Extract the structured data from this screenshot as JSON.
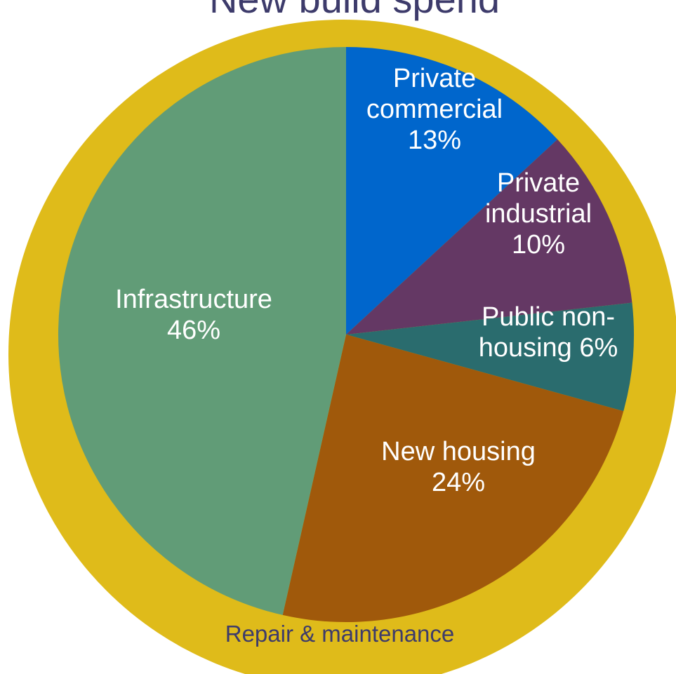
{
  "chart_data": {
    "type": "pie",
    "title": "New build spend",
    "outer_ring": {
      "label": "Repair & maintenance",
      "color": "#DFBB1A"
    },
    "slices": [
      {
        "label_lines": [
          "Private",
          "commercial",
          "13%"
        ],
        "value": 13,
        "color": "#0066CC"
      },
      {
        "label_lines": [
          "Private",
          "industrial",
          "10%"
        ],
        "value": 10,
        "color": "#643864"
      },
      {
        "label_lines": [
          "Public non-",
          "housing 6%"
        ],
        "value": 6,
        "color": "#2A6C6E"
      },
      {
        "label_lines": [
          "New housing",
          "24%"
        ],
        "value": 24,
        "color": "#A0590B"
      },
      {
        "label_lines": [
          "Infrastructure",
          "46%"
        ],
        "value": 46,
        "color": "#619C77"
      }
    ],
    "start_angle_deg": 0,
    "direction": "clockwise"
  }
}
